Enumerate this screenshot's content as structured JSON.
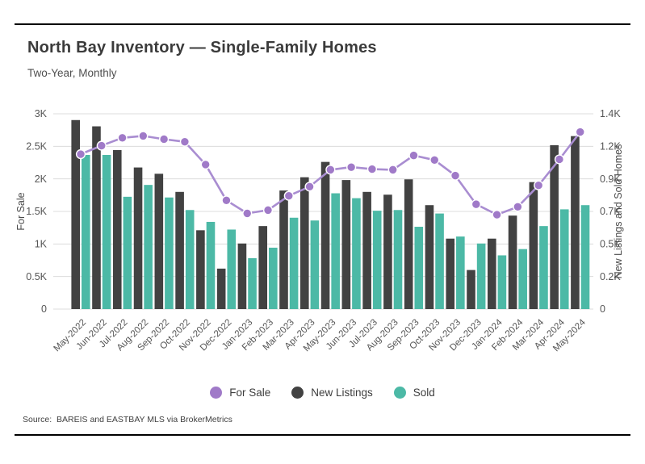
{
  "header": {
    "title": "North Bay Inventory — Single-Family Homes",
    "subtitle": "Two-Year, Monthly"
  },
  "source_note": "Source:  BAREIS and EASTBAY MLS via BrokerMetrics",
  "colors": {
    "for_sale_marker": "#a07ac8",
    "for_sale_line": "#a98dd1",
    "new_listings": "#424242",
    "sold": "#4cb9a6",
    "grid": "#dcdcdc",
    "tick_text": "#565656",
    "axis_title_text": "#4a4a4a",
    "x_label_text": "#555555"
  },
  "chart_data": {
    "type": "combo-bar-line",
    "title": "North Bay Inventory — Single-Family Homes",
    "subtitle": "Two-Year, Monthly",
    "grid": true,
    "legend_position": "bottom",
    "categories": [
      "May-2022",
      "Jun-2022",
      "Jul-2022",
      "Aug-2022",
      "Sep-2022",
      "Oct-2022",
      "Nov-2022",
      "Dec-2022",
      "Jan-2023",
      "Feb-2023",
      "Mar-2023",
      "Apr-2023",
      "May-2023",
      "Jun-2023",
      "Jul-2023",
      "Aug-2023",
      "Sep-2023",
      "Oct-2023",
      "Nov-2023",
      "Dec-2023",
      "Jan-2024",
      "Feb-2024",
      "Mar-2024",
      "Apr-2024",
      "May-2024"
    ],
    "series": [
      {
        "name": "For Sale",
        "type": "line",
        "axis": "left",
        "values": [
          2380,
          2510,
          2630,
          2660,
          2610,
          2570,
          2220,
          1670,
          1470,
          1520,
          1740,
          1880,
          2140,
          2180,
          2150,
          2140,
          2360,
          2290,
          2050,
          1610,
          1450,
          1570,
          1900,
          2300,
          2720
        ]
      },
      {
        "name": "New Listings",
        "type": "bar",
        "axis": "right",
        "values": [
          1355,
          1310,
          1140,
          1015,
          970,
          840,
          565,
          290,
          470,
          595,
          850,
          945,
          1055,
          925,
          840,
          820,
          930,
          745,
          505,
          280,
          505,
          670,
          910,
          1175,
          1240
        ]
      },
      {
        "name": "Sold",
        "type": "bar",
        "axis": "right",
        "values": [
          1105,
          1105,
          805,
          890,
          800,
          710,
          625,
          570,
          365,
          440,
          655,
          635,
          830,
          795,
          705,
          710,
          590,
          685,
          520,
          470,
          385,
          430,
          595,
          715,
          745
        ]
      }
    ],
    "left_axis": {
      "title": "For Sale",
      "min": 0,
      "max": 3000,
      "tick_labels": [
        "0",
        "0.5K",
        "1K",
        "1.5K",
        "2K",
        "2.5K",
        "3K"
      ]
    },
    "right_axis": {
      "title": "New Listings and Sold Homes",
      "min": 0,
      "max": 1400,
      "tick_labels": [
        "0",
        "0.2K",
        "0.5K",
        "0.7K",
        "0.9K",
        "1.2K",
        "1.4K"
      ]
    }
  }
}
